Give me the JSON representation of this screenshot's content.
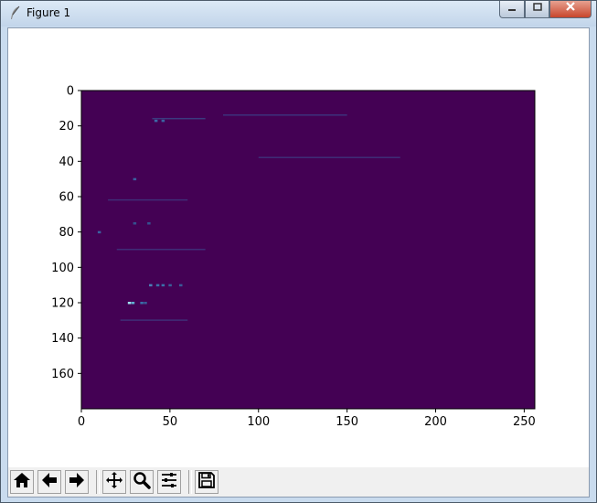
{
  "window": {
    "title": "Figure 1",
    "icon": "feather-icon",
    "controls": [
      "minimize-icon",
      "maximize-icon",
      "close-icon"
    ]
  },
  "chart_data": {
    "type": "heatmap",
    "colormap": "viridis",
    "title": "",
    "xlabel": "",
    "ylabel": "",
    "xlim": [
      0,
      256
    ],
    "ylim": [
      180,
      0
    ],
    "x_ticks": [
      0,
      50,
      100,
      150,
      200,
      250
    ],
    "y_ticks": [
      0,
      20,
      40,
      60,
      80,
      100,
      120,
      140,
      160
    ],
    "background_value_color": "#440154",
    "highlights": [
      {
        "x": 27,
        "y": 120,
        "color": "#9fe0f0"
      },
      {
        "x": 29,
        "y": 120,
        "color": "#5fb0d0"
      },
      {
        "x": 34,
        "y": 120,
        "color": "#3a6ea8"
      },
      {
        "x": 36,
        "y": 120,
        "color": "#3a5a98"
      },
      {
        "x": 39,
        "y": 110,
        "color": "#4a80b8"
      },
      {
        "x": 43,
        "y": 110,
        "color": "#3a70a8"
      },
      {
        "x": 46,
        "y": 110,
        "color": "#3a70a8"
      },
      {
        "x": 50,
        "y": 110,
        "color": "#3a5f98"
      },
      {
        "x": 56,
        "y": 110,
        "color": "#3a5a98"
      },
      {
        "x": 42,
        "y": 17,
        "color": "#3c6aa6"
      },
      {
        "x": 46,
        "y": 17,
        "color": "#3a62a0"
      },
      {
        "x": 30,
        "y": 50,
        "color": "#3a60a0"
      },
      {
        "x": 10,
        "y": 80,
        "color": "#3a62a0"
      },
      {
        "x": 30,
        "y": 75,
        "color": "#35508f"
      },
      {
        "x": 38,
        "y": 75,
        "color": "#35508f"
      }
    ],
    "faint_streaks": [
      {
        "x0": 40,
        "x1": 70,
        "y": 16,
        "color": "#3a4a8a"
      },
      {
        "x0": 80,
        "x1": 150,
        "y": 14,
        "color": "#3c3f86"
      },
      {
        "x0": 100,
        "x1": 180,
        "y": 38,
        "color": "#3e3880"
      },
      {
        "x0": 15,
        "x1": 60,
        "y": 62,
        "color": "#3e3880"
      },
      {
        "x0": 20,
        "x1": 70,
        "y": 90,
        "color": "#3e3880"
      },
      {
        "x0": 22,
        "x1": 60,
        "y": 130,
        "color": "#3e3880"
      }
    ]
  },
  "toolbar": {
    "buttons": [
      {
        "name": "home-button",
        "icon": "home-icon"
      },
      {
        "name": "back-button",
        "icon": "arrow-left-icon"
      },
      {
        "name": "forward-button",
        "icon": "arrow-right-icon"
      },
      {
        "name": "pan-button",
        "icon": "move-icon"
      },
      {
        "name": "zoom-button",
        "icon": "magnifier-icon"
      },
      {
        "name": "subplots-button",
        "icon": "sliders-icon"
      },
      {
        "name": "save-button",
        "icon": "floppy-icon"
      }
    ]
  }
}
